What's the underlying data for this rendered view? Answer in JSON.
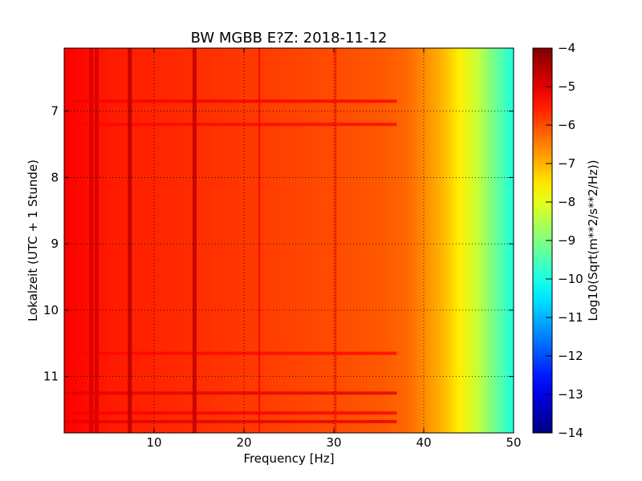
{
  "chart_data": {
    "type": "heatmap",
    "title": "BW MGBB E?Z: 2018-11-12",
    "xlabel": "Frequency [Hz]",
    "ylabel": "Lokalzeit (UTC + 1 Stunde)",
    "xlim": [
      0,
      50
    ],
    "ylim": [
      11.85,
      6.05
    ],
    "x_ticks": [
      10,
      20,
      30,
      40,
      50
    ],
    "y_ticks": [
      7,
      8,
      9,
      10,
      11
    ],
    "grid": true,
    "colormap": "jet",
    "colorbar": {
      "label": "Log10(Sqrt(m**2/s**2/Hz))",
      "range": [
        -14,
        -4
      ],
      "ticks": [
        -4,
        -5,
        -6,
        -7,
        -8,
        -9,
        -10,
        -11,
        -12,
        -13,
        -14
      ]
    },
    "background_level_profile": {
      "frequency_hz": [
        0,
        5,
        10,
        20,
        30,
        35,
        38,
        40,
        42,
        44,
        46,
        48,
        50
      ],
      "log10_amplitude": [
        -5.2,
        -5.5,
        -5.6,
        -5.8,
        -6.0,
        -6.1,
        -6.25,
        -6.6,
        -7.0,
        -7.6,
        -8.3,
        -9.2,
        -10.0
      ]
    },
    "frequency_lines": [
      {
        "frequency_hz": 0.7,
        "log10_amplitude": -5.3
      },
      {
        "frequency_hz": 3.0,
        "log10_amplitude": -4.9
      },
      {
        "frequency_hz": 3.6,
        "log10_amplitude": -4.9
      },
      {
        "frequency_hz": 7.3,
        "log10_amplitude": -4.6
      },
      {
        "frequency_hz": 14.5,
        "log10_amplitude": -4.7
      },
      {
        "frequency_hz": 21.7,
        "log10_amplitude": -5.2
      },
      {
        "frequency_hz": 30.2,
        "log10_amplitude": -5.4
      }
    ],
    "time_bands": [
      {
        "time_h": 6.85,
        "log10_amplitude": -5.2
      },
      {
        "time_h": 7.2,
        "log10_amplitude": -5.3
      },
      {
        "time_h": 10.65,
        "log10_amplitude": -5.3
      },
      {
        "time_h": 11.25,
        "log10_amplitude": -5.0
      },
      {
        "time_h": 11.55,
        "log10_amplitude": -5.2
      },
      {
        "time_h": 11.68,
        "log10_amplitude": -5.0
      }
    ]
  }
}
